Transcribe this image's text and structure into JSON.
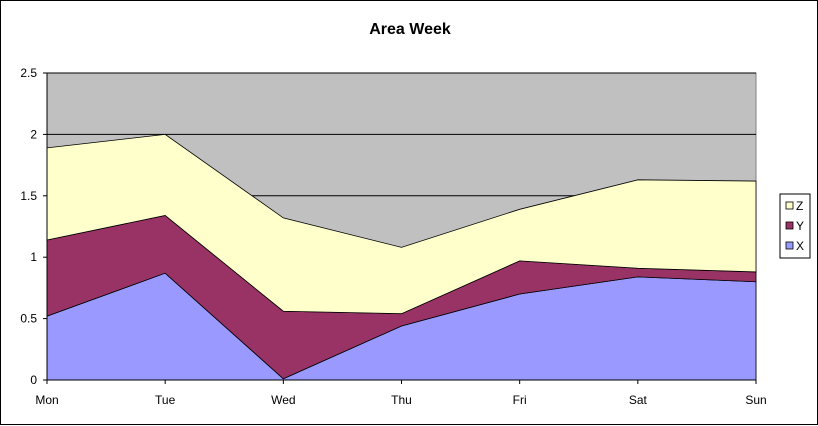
{
  "chart_data": {
    "type": "area",
    "stacked": true,
    "title": "Area Week",
    "xlabel": "",
    "ylabel": "",
    "categories": [
      "Mon",
      "Tue",
      "Wed",
      "Thu",
      "Fri",
      "Sat",
      "Sun"
    ],
    "series": [
      {
        "name": "X",
        "color": "#9999ff",
        "values": [
          0.52,
          0.87,
          0.01,
          0.44,
          0.7,
          0.84,
          0.8
        ]
      },
      {
        "name": "Y",
        "color": "#993366",
        "values": [
          0.62,
          0.47,
          0.55,
          0.1,
          0.27,
          0.07,
          0.08
        ]
      },
      {
        "name": "Z",
        "color": "#ffffcc",
        "values": [
          0.75,
          0.66,
          0.76,
          0.54,
          0.42,
          0.72,
          0.74
        ]
      }
    ],
    "ylim": [
      0,
      2.5
    ],
    "yticks": [
      "0",
      "0.5",
      "1",
      "1.5",
      "2",
      "2.5"
    ],
    "ytick_values": [
      0,
      0.5,
      1,
      1.5,
      2,
      2.5
    ],
    "grid": true,
    "plot_background": "#c0c0c0",
    "legend_position": "right",
    "legend_order": [
      "Z",
      "Y",
      "X"
    ]
  }
}
